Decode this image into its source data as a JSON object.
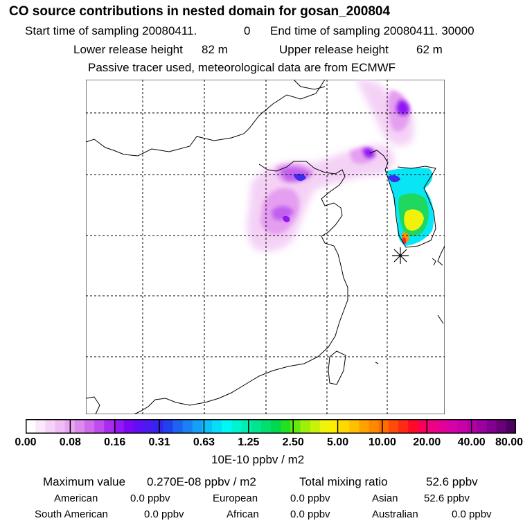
{
  "header": {
    "title": "CO  source contributions in nested domain for gosan_200804",
    "start_label": "Start time of sampling 20080411.",
    "start_value": "0",
    "end_label": "End time of sampling 20080411. 30000",
    "lower_label": "Lower release height",
    "lower_value": "82 m",
    "upper_label": "Upper release height",
    "upper_value": "62 m",
    "note": "Passive tracer used, meteorological data are from ECMWF"
  },
  "colorbar": {
    "tick_labels": [
      "0.00",
      "0.08",
      "0.16",
      "0.31",
      "0.63",
      "1.25",
      "2.50",
      "5.00",
      "10.00",
      "20.00",
      "40.00",
      "80.00"
    ],
    "unit_label": "10E-10 ppbv / m2",
    "colors": [
      "#ffffff",
      "#fbe9fb",
      "#f5d2f7",
      "#efbdf3",
      "#e7a6ef",
      "#dc8aec",
      "#ce6cec",
      "#bf4cee",
      "#a92bf0",
      "#9418f4",
      "#7a08f5",
      "#600ef4",
      "#4b1af0",
      "#3524ec",
      "#2140ee",
      "#1d62f0",
      "#1a80f4",
      "#14a0f6",
      "#0cc0f8",
      "#07ddf8",
      "#00f8f4",
      "#00f4d2",
      "#00eeb0",
      "#00e690",
      "#00e070",
      "#00d850",
      "#22e022",
      "#66ea0e",
      "#9cf00a",
      "#c8f20a",
      "#eef40a",
      "#ffee00",
      "#ffd800",
      "#ffc000",
      "#ffa200",
      "#ff8800",
      "#ff6c00",
      "#ff4a0c",
      "#ff2a14",
      "#ff0a28",
      "#f8005a",
      "#f00082",
      "#e40098",
      "#d800a8",
      "#c800aa",
      "#b400a6",
      "#9c00a0",
      "#820090",
      "#68007a",
      "#4c0060"
    ]
  },
  "stats": {
    "max_label": "Maximum value",
    "max_value": "0.270E-08 ppbv / m2",
    "total_label": "Total mixing ratio",
    "total_value": "52.6 ppbv",
    "regions": [
      {
        "name": "American",
        "value": "0.0 ppbv"
      },
      {
        "name": "European",
        "value": "0.0 ppbv"
      },
      {
        "name": "Asian",
        "value": "52.6 ppbv"
      },
      {
        "name": "South American",
        "value": "0.0 ppbv"
      },
      {
        "name": "African",
        "value": "0.0 ppbv"
      },
      {
        "name": "Australian",
        "value": "0.0 ppbv"
      }
    ]
  },
  "map": {
    "receptor_marker_icon": "asterisk-icon",
    "plume_colors": {
      "faint": "#f3cdf5",
      "light": "#e59ff0",
      "mid": "#c060ee",
      "purple": "#8f15f3",
      "blue": "#3b2cf0",
      "cyan": "#08e6f6",
      "green": "#1ed860",
      "yellow": "#f0f20a",
      "orange": "#ff9000",
      "red": "#ff2020"
    }
  }
}
